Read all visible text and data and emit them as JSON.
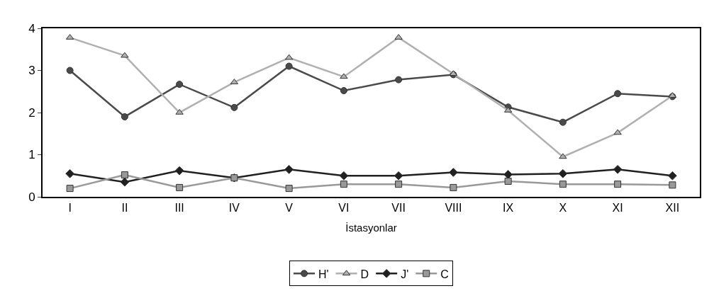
{
  "chart_data": {
    "type": "line",
    "xlabel": "İstasyonlar",
    "categories": [
      "I",
      "II",
      "III",
      "IV",
      "V",
      "VI",
      "VII",
      "VIII",
      "IX",
      "X",
      "XI",
      "XII"
    ],
    "series": [
      {
        "name": "H'",
        "color": "#4a4a4a",
        "marker": "circle",
        "values": [
          3.0,
          1.9,
          2.67,
          2.12,
          3.1,
          2.52,
          2.78,
          2.9,
          2.13,
          1.77,
          2.45,
          2.38
        ]
      },
      {
        "name": "D",
        "color": "#b0b0b0",
        "marker": "triangle",
        "values": [
          3.78,
          3.35,
          2.0,
          2.72,
          3.3,
          2.85,
          3.78,
          2.92,
          2.05,
          0.95,
          1.52,
          2.4
        ]
      },
      {
        "name": "J'",
        "color": "#202020",
        "marker": "diamond",
        "values": [
          0.55,
          0.35,
          0.62,
          0.45,
          0.65,
          0.5,
          0.5,
          0.58,
          0.53,
          0.55,
          0.65,
          0.5
        ]
      },
      {
        "name": "C",
        "color": "#999999",
        "marker": "square",
        "values": [
          0.2,
          0.52,
          0.22,
          0.45,
          0.2,
          0.3,
          0.3,
          0.22,
          0.37,
          0.3,
          0.3,
          0.28
        ]
      }
    ],
    "ylim": [
      0,
      4
    ],
    "yticks": [
      0,
      1,
      2,
      3,
      4
    ],
    "legend": "bottom"
  }
}
